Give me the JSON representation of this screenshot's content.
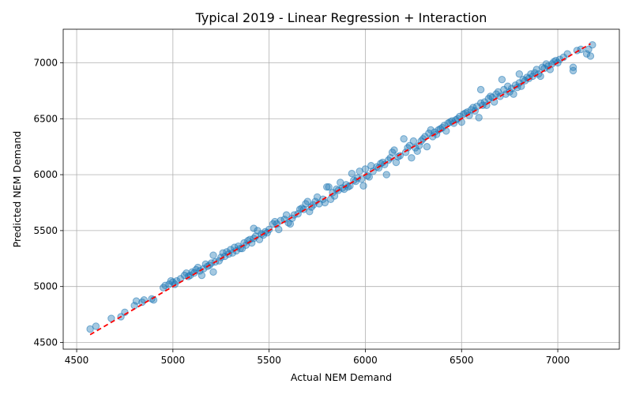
{
  "chart_data": {
    "type": "scatter",
    "title": "Typical 2019 - Linear Regression + Interaction",
    "xlabel": "Actual NEM Demand",
    "ylabel": "Predicted NEM Demand",
    "xlim": [
      4430,
      7320
    ],
    "ylim": [
      4440,
      7300
    ],
    "xticks": [
      4500,
      5000,
      5500,
      6000,
      6500,
      7000
    ],
    "yticks": [
      4500,
      5000,
      5500,
      6000,
      6500,
      7000
    ],
    "xtick_labels": [
      "4500",
      "5000",
      "5500",
      "6000",
      "6500",
      "7000"
    ],
    "ytick_labels": [
      "4500",
      "5000",
      "5500",
      "6000",
      "6500",
      "7000"
    ],
    "grid": true,
    "legend": "none",
    "colors": {
      "points": "#1f77b4",
      "reference_line": "#ff0000",
      "grid": "#b0b0b0"
    },
    "reference_line": {
      "style": "dashed",
      "x": [
        4570,
        7170
      ],
      "y": [
        4570,
        7170
      ]
    },
    "points": [
      [
        4570,
        4620
      ],
      [
        4600,
        4645
      ],
      [
        4680,
        4715
      ],
      [
        4730,
        4730
      ],
      [
        4750,
        4770
      ],
      [
        4800,
        4830
      ],
      [
        4810,
        4870
      ],
      [
        4840,
        4860
      ],
      [
        4850,
        4880
      ],
      [
        4890,
        4890
      ],
      [
        4900,
        4880
      ],
      [
        4950,
        4990
      ],
      [
        4960,
        5010
      ],
      [
        4980,
        5020
      ],
      [
        4990,
        5050
      ],
      [
        5000,
        5040
      ],
      [
        5010,
        5020
      ],
      [
        5020,
        5050
      ],
      [
        5040,
        5070
      ],
      [
        5060,
        5100
      ],
      [
        5070,
        5120
      ],
      [
        5080,
        5090
      ],
      [
        5090,
        5100
      ],
      [
        5100,
        5130
      ],
      [
        5110,
        5120
      ],
      [
        5120,
        5150
      ],
      [
        5130,
        5170
      ],
      [
        5140,
        5140
      ],
      [
        5150,
        5100
      ],
      [
        5160,
        5160
      ],
      [
        5170,
        5200
      ],
      [
        5180,
        5180
      ],
      [
        5190,
        5190
      ],
      [
        5200,
        5210
      ],
      [
        5210,
        5130
      ],
      [
        5210,
        5280
      ],
      [
        5220,
        5220
      ],
      [
        5240,
        5230
      ],
      [
        5250,
        5260
      ],
      [
        5260,
        5300
      ],
      [
        5270,
        5270
      ],
      [
        5280,
        5310
      ],
      [
        5290,
        5290
      ],
      [
        5300,
        5330
      ],
      [
        5310,
        5300
      ],
      [
        5320,
        5350
      ],
      [
        5330,
        5320
      ],
      [
        5340,
        5360
      ],
      [
        5350,
        5340
      ],
      [
        5360,
        5340
      ],
      [
        5370,
        5390
      ],
      [
        5380,
        5370
      ],
      [
        5390,
        5410
      ],
      [
        5400,
        5420
      ],
      [
        5410,
        5390
      ],
      [
        5420,
        5430
      ],
      [
        5420,
        5520
      ],
      [
        5430,
        5450
      ],
      [
        5440,
        5500
      ],
      [
        5450,
        5420
      ],
      [
        5460,
        5470
      ],
      [
        5470,
        5460
      ],
      [
        5480,
        5490
      ],
      [
        5490,
        5480
      ],
      [
        5500,
        5510
      ],
      [
        5520,
        5560
      ],
      [
        5530,
        5580
      ],
      [
        5540,
        5560
      ],
      [
        5550,
        5510
      ],
      [
        5560,
        5590
      ],
      [
        5580,
        5600
      ],
      [
        5590,
        5640
      ],
      [
        5600,
        5570
      ],
      [
        5610,
        5560
      ],
      [
        5620,
        5610
      ],
      [
        5630,
        5640
      ],
      [
        5650,
        5650
      ],
      [
        5660,
        5690
      ],
      [
        5670,
        5700
      ],
      [
        5680,
        5690
      ],
      [
        5690,
        5740
      ],
      [
        5700,
        5760
      ],
      [
        5710,
        5670
      ],
      [
        5720,
        5710
      ],
      [
        5730,
        5730
      ],
      [
        5740,
        5760
      ],
      [
        5750,
        5800
      ],
      [
        5760,
        5740
      ],
      [
        5780,
        5780
      ],
      [
        5790,
        5750
      ],
      [
        5800,
        5890
      ],
      [
        5810,
        5890
      ],
      [
        5820,
        5780
      ],
      [
        5830,
        5840
      ],
      [
        5840,
        5810
      ],
      [
        5850,
        5870
      ],
      [
        5860,
        5860
      ],
      [
        5870,
        5930
      ],
      [
        5880,
        5880
      ],
      [
        5890,
        5870
      ],
      [
        5900,
        5910
      ],
      [
        5910,
        5890
      ],
      [
        5920,
        5900
      ],
      [
        5930,
        6010
      ],
      [
        5940,
        5950
      ],
      [
        5950,
        5940
      ],
      [
        5960,
        5970
      ],
      [
        5970,
        6030
      ],
      [
        5980,
        5960
      ],
      [
        5990,
        5900
      ],
      [
        6000,
        6050
      ],
      [
        6010,
        5990
      ],
      [
        6020,
        5980
      ],
      [
        6030,
        6080
      ],
      [
        6040,
        6030
      ],
      [
        6060,
        6070
      ],
      [
        6070,
        6060
      ],
      [
        6080,
        6100
      ],
      [
        6090,
        6110
      ],
      [
        6100,
        6090
      ],
      [
        6110,
        6000
      ],
      [
        6120,
        6130
      ],
      [
        6130,
        6150
      ],
      [
        6140,
        6200
      ],
      [
        6150,
        6220
      ],
      [
        6160,
        6110
      ],
      [
        6170,
        6160
      ],
      [
        6180,
        6170
      ],
      [
        6200,
        6320
      ],
      [
        6210,
        6200
      ],
      [
        6220,
        6240
      ],
      [
        6230,
        6260
      ],
      [
        6240,
        6150
      ],
      [
        6250,
        6300
      ],
      [
        6260,
        6240
      ],
      [
        6270,
        6210
      ],
      [
        6280,
        6260
      ],
      [
        6290,
        6300
      ],
      [
        6300,
        6320
      ],
      [
        6310,
        6340
      ],
      [
        6320,
        6250
      ],
      [
        6330,
        6370
      ],
      [
        6340,
        6400
      ],
      [
        6350,
        6340
      ],
      [
        6360,
        6380
      ],
      [
        6370,
        6360
      ],
      [
        6380,
        6400
      ],
      [
        6390,
        6410
      ],
      [
        6400,
        6420
      ],
      [
        6410,
        6440
      ],
      [
        6420,
        6390
      ],
      [
        6430,
        6460
      ],
      [
        6440,
        6470
      ],
      [
        6450,
        6480
      ],
      [
        6460,
        6460
      ],
      [
        6470,
        6490
      ],
      [
        6480,
        6500
      ],
      [
        6490,
        6520
      ],
      [
        6500,
        6470
      ],
      [
        6510,
        6540
      ],
      [
        6520,
        6550
      ],
      [
        6530,
        6560
      ],
      [
        6540,
        6530
      ],
      [
        6550,
        6580
      ],
      [
        6560,
        6600
      ],
      [
        6570,
        6570
      ],
      [
        6580,
        6610
      ],
      [
        6590,
        6510
      ],
      [
        6600,
        6640
      ],
      [
        6600,
        6760
      ],
      [
        6610,
        6620
      ],
      [
        6620,
        6650
      ],
      [
        6630,
        6620
      ],
      [
        6640,
        6680
      ],
      [
        6650,
        6700
      ],
      [
        6660,
        6690
      ],
      [
        6670,
        6650
      ],
      [
        6680,
        6720
      ],
      [
        6690,
        6740
      ],
      [
        6700,
        6700
      ],
      [
        6710,
        6850
      ],
      [
        6720,
        6760
      ],
      [
        6730,
        6720
      ],
      [
        6740,
        6790
      ],
      [
        6750,
        6740
      ],
      [
        6760,
        6770
      ],
      [
        6770,
        6720
      ],
      [
        6780,
        6800
      ],
      [
        6790,
        6780
      ],
      [
        6800,
        6820
      ],
      [
        6800,
        6900
      ],
      [
        6810,
        6790
      ],
      [
        6820,
        6850
      ],
      [
        6830,
        6840
      ],
      [
        6840,
        6870
      ],
      [
        6850,
        6860
      ],
      [
        6860,
        6900
      ],
      [
        6870,
        6880
      ],
      [
        6880,
        6910
      ],
      [
        6890,
        6940
      ],
      [
        6900,
        6900
      ],
      [
        6910,
        6880
      ],
      [
        6920,
        6960
      ],
      [
        6930,
        6950
      ],
      [
        6940,
        6990
      ],
      [
        6950,
        6970
      ],
      [
        6960,
        6940
      ],
      [
        6970,
        6990
      ],
      [
        6980,
        7010
      ],
      [
        6990,
        7020
      ],
      [
        7000,
        7000
      ],
      [
        7010,
        7030
      ],
      [
        7030,
        7050
      ],
      [
        7050,
        7080
      ],
      [
        7080,
        6930
      ],
      [
        7080,
        6960
      ],
      [
        7100,
        7110
      ],
      [
        7120,
        7120
      ],
      [
        7150,
        7080
      ],
      [
        7160,
        7120
      ],
      [
        7170,
        7060
      ],
      [
        7180,
        7160
      ]
    ]
  }
}
